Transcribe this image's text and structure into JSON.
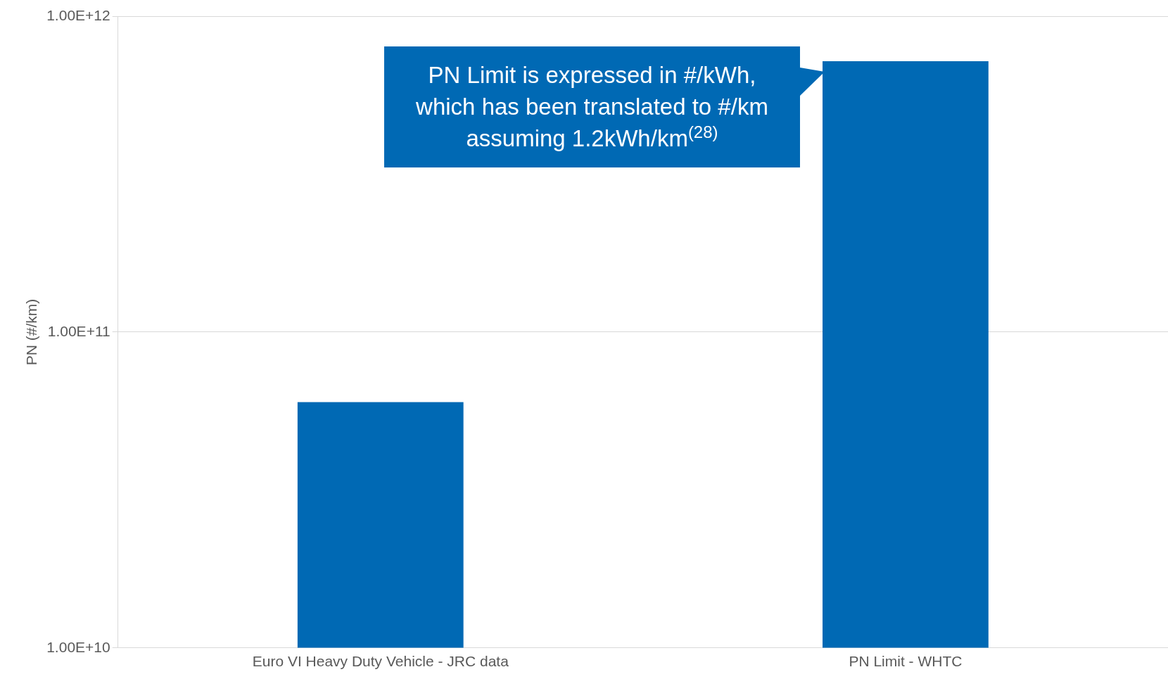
{
  "chart_data": {
    "type": "bar",
    "ylabel": "PN (#/km)",
    "categories": [
      "Euro VI Heavy Duty Vehicle - JRC data",
      "PN Limit - WHTC"
    ],
    "values": [
      60000000000.0,
      720000000000.0
    ],
    "color": "#0069b4",
    "log": "y",
    "ylim": [
      10000000000.0,
      1000000000000.0
    ],
    "yticks": [
      {
        "value": 10000000000.0,
        "label": "1.00E+10"
      },
      {
        "value": 100000000000.0,
        "label": "1.00E+11"
      },
      {
        "value": 1000000000000.0,
        "label": "1.00E+12"
      }
    ],
    "grid": "y",
    "legend": false,
    "annotations": [
      "PN Limit is expressed in #/kWh, which has been translated to #/km assuming 1.2kWh/km$^{(28)}$"
    ]
  }
}
